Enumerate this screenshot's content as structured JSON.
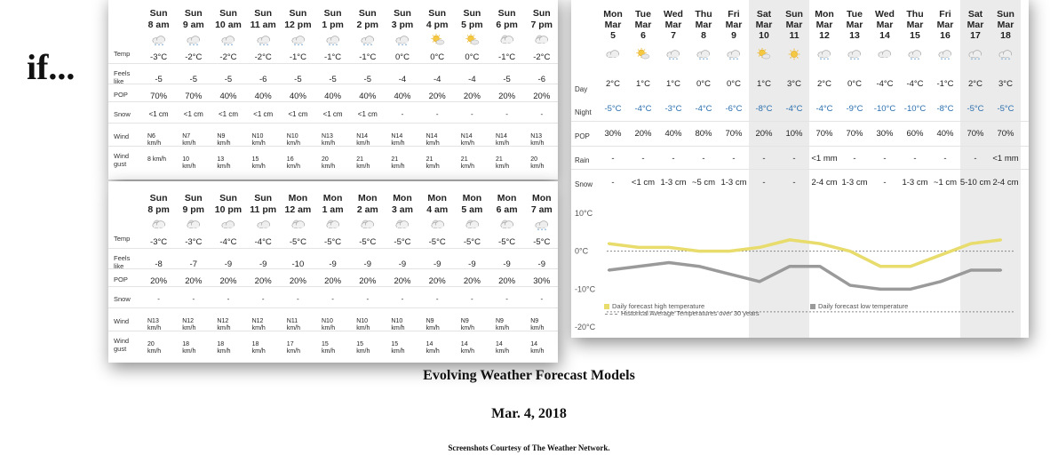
{
  "left_text": "if...",
  "caption": {
    "title": "Evolving Weather Forecast Models",
    "date": "Mar. 4, 2018",
    "credit": "Screenshots Courtesy of The Weather Network."
  },
  "hourly_top": {
    "labels": [
      "Temp",
      "Feels like",
      "POP",
      "Snow",
      "Wind",
      "Wind gust"
    ],
    "cols": [
      {
        "day": "Sun",
        "time": "8 am",
        "icon": "cloud-snow-icon",
        "temp": "-3°C",
        "feels": "-5",
        "pop": "70%",
        "snow": "<1 cm",
        "wind": "N6 km/h",
        "gust": "8 km/h"
      },
      {
        "day": "Sun",
        "time": "9 am",
        "icon": "cloud-snow-icon",
        "temp": "-2°C",
        "feels": "-5",
        "pop": "70%",
        "snow": "<1 cm",
        "wind": "N7 km/h",
        "gust": "10 km/h"
      },
      {
        "day": "Sun",
        "time": "10 am",
        "icon": "cloud-snow-icon",
        "temp": "-2°C",
        "feels": "-5",
        "pop": "40%",
        "snow": "<1 cm",
        "wind": "N9 km/h",
        "gust": "13 km/h"
      },
      {
        "day": "Sun",
        "time": "11 am",
        "icon": "cloud-snow-icon",
        "temp": "-2°C",
        "feels": "-6",
        "pop": "40%",
        "snow": "<1 cm",
        "wind": "N10 km/h",
        "gust": "15 km/h"
      },
      {
        "day": "Sun",
        "time": "12 pm",
        "icon": "cloud-snow-icon",
        "temp": "-1°C",
        "feels": "-5",
        "pop": "40%",
        "snow": "<1 cm",
        "wind": "N10 km/h",
        "gust": "16 km/h"
      },
      {
        "day": "Sun",
        "time": "1 pm",
        "icon": "cloud-snow-icon",
        "temp": "-1°C",
        "feels": "-5",
        "pop": "40%",
        "snow": "<1 cm",
        "wind": "N13 km/h",
        "gust": "20 km/h"
      },
      {
        "day": "Sun",
        "time": "2 pm",
        "icon": "cloud-snow-icon",
        "temp": "-1°C",
        "feels": "-5",
        "pop": "40%",
        "snow": "<1 cm",
        "wind": "N14 km/h",
        "gust": "21 km/h"
      },
      {
        "day": "Sun",
        "time": "3 pm",
        "icon": "cloud-snow-icon",
        "temp": "0°C",
        "feels": "-4",
        "pop": "40%",
        "snow": "-",
        "wind": "N14 km/h",
        "gust": "21 km/h"
      },
      {
        "day": "Sun",
        "time": "4 pm",
        "icon": "sun-cloud-icon",
        "temp": "0°C",
        "feels": "-4",
        "pop": "20%",
        "snow": "-",
        "wind": "N14 km/h",
        "gust": "21 km/h"
      },
      {
        "day": "Sun",
        "time": "5 pm",
        "icon": "sun-cloud-icon",
        "temp": "0°C",
        "feels": "-4",
        "pop": "20%",
        "snow": "-",
        "wind": "N14 km/h",
        "gust": "21 km/h"
      },
      {
        "day": "Sun",
        "time": "6 pm",
        "icon": "moon-cloud-icon",
        "temp": "-1°C",
        "feels": "-5",
        "pop": "20%",
        "snow": "-",
        "wind": "N14 km/h",
        "gust": "21 km/h"
      },
      {
        "day": "Sun",
        "time": "7 pm",
        "icon": "moon-cloud-icon",
        "temp": "-2°C",
        "feels": "-6",
        "pop": "20%",
        "snow": "-",
        "wind": "N13 km/h",
        "gust": "20 km/h"
      }
    ]
  },
  "hourly_bottom": {
    "labels": [
      "Temp",
      "Feels like",
      "POP",
      "Snow",
      "Wind",
      "Wind gust"
    ],
    "cols": [
      {
        "day": "Sun",
        "time": "8 pm",
        "icon": "moon-cloud-icon",
        "temp": "-3°C",
        "feels": "-8",
        "pop": "20%",
        "snow": "-",
        "wind": "N13 km/h",
        "gust": "20 km/h"
      },
      {
        "day": "Sun",
        "time": "9 pm",
        "icon": "moon-cloud-icon",
        "temp": "-3°C",
        "feels": "-7",
        "pop": "20%",
        "snow": "-",
        "wind": "N12 km/h",
        "gust": "18 km/h"
      },
      {
        "day": "Sun",
        "time": "10 pm",
        "icon": "cloud-icon",
        "temp": "-4°C",
        "feels": "-9",
        "pop": "20%",
        "snow": "-",
        "wind": "N12 km/h",
        "gust": "18 km/h"
      },
      {
        "day": "Sun",
        "time": "11 pm",
        "icon": "cloud-icon",
        "temp": "-4°C",
        "feels": "-9",
        "pop": "20%",
        "snow": "-",
        "wind": "N12 km/h",
        "gust": "18 km/h"
      },
      {
        "day": "Mon",
        "time": "12 am",
        "icon": "moon-cloud-icon",
        "temp": "-5°C",
        "feels": "-10",
        "pop": "20%",
        "snow": "-",
        "wind": "N11 km/h",
        "gust": "17 km/h"
      },
      {
        "day": "Mon",
        "time": "1 am",
        "icon": "moon-cloud-icon",
        "temp": "-5°C",
        "feels": "-9",
        "pop": "20%",
        "snow": "-",
        "wind": "N10 km/h",
        "gust": "15 km/h"
      },
      {
        "day": "Mon",
        "time": "2 am",
        "icon": "moon-cloud-icon",
        "temp": "-5°C",
        "feels": "-9",
        "pop": "20%",
        "snow": "-",
        "wind": "N10 km/h",
        "gust": "15 km/h"
      },
      {
        "day": "Mon",
        "time": "3 am",
        "icon": "moon-cloud-icon",
        "temp": "-5°C",
        "feels": "-9",
        "pop": "20%",
        "snow": "-",
        "wind": "N10 km/h",
        "gust": "15 km/h"
      },
      {
        "day": "Mon",
        "time": "4 am",
        "icon": "moon-cloud-icon",
        "temp": "-5°C",
        "feels": "-9",
        "pop": "20%",
        "snow": "-",
        "wind": "N9 km/h",
        "gust": "14 km/h"
      },
      {
        "day": "Mon",
        "time": "5 am",
        "icon": "moon-cloud-icon",
        "temp": "-5°C",
        "feels": "-9",
        "pop": "20%",
        "snow": "-",
        "wind": "N9 km/h",
        "gust": "14 km/h"
      },
      {
        "day": "Mon",
        "time": "6 am",
        "icon": "moon-cloud-icon",
        "temp": "-5°C",
        "feels": "-9",
        "pop": "20%",
        "snow": "-",
        "wind": "N9 km/h",
        "gust": "14 km/h"
      },
      {
        "day": "Mon",
        "time": "7 am",
        "icon": "cloud-snow-icon",
        "temp": "-5°C",
        "feels": "-9",
        "pop": "30%",
        "snow": "-",
        "wind": "N9 km/h",
        "gust": "14 km/h"
      }
    ]
  },
  "daily": {
    "labels": [
      "Day",
      "Night",
      "POP",
      "Rain",
      "Snow"
    ],
    "cols": [
      {
        "wd": "Mon",
        "mo": "Mar",
        "d": "5",
        "icon": "cloud-icon",
        "day": "2°C",
        "night": "-5°C",
        "pop": "30%",
        "rain": "-",
        "snow": "-",
        "weekend": false
      },
      {
        "wd": "Tue",
        "mo": "Mar",
        "d": "6",
        "icon": "sun-cloud-icon",
        "day": "1°C",
        "night": "-4°C",
        "pop": "20%",
        "rain": "-",
        "snow": "<1 cm",
        "weekend": false
      },
      {
        "wd": "Wed",
        "mo": "Mar",
        "d": "7",
        "icon": "cloud-snow-icon",
        "day": "1°C",
        "night": "-3°C",
        "pop": "40%",
        "rain": "-",
        "snow": "1-3 cm",
        "weekend": false
      },
      {
        "wd": "Thu",
        "mo": "Mar",
        "d": "8",
        "icon": "cloud-snow-icon",
        "day": "0°C",
        "night": "-4°C",
        "pop": "80%",
        "rain": "-",
        "snow": "~5 cm",
        "weekend": false
      },
      {
        "wd": "Fri",
        "mo": "Mar",
        "d": "9",
        "icon": "cloud-snow-icon",
        "day": "0°C",
        "night": "-6°C",
        "pop": "70%",
        "rain": "-",
        "snow": "1-3 cm",
        "weekend": false
      },
      {
        "wd": "Sat",
        "mo": "Mar",
        "d": "10",
        "icon": "sun-cloud-icon",
        "day": "1°C",
        "night": "-8°C",
        "pop": "20%",
        "rain": "-",
        "snow": "-",
        "weekend": true
      },
      {
        "wd": "Sun",
        "mo": "Mar",
        "d": "11",
        "icon": "sun-icon",
        "day": "3°C",
        "night": "-4°C",
        "pop": "10%",
        "rain": "-",
        "snow": "-",
        "weekend": true
      },
      {
        "wd": "Mon",
        "mo": "Mar",
        "d": "12",
        "icon": "cloud-snow-icon",
        "day": "2°C",
        "night": "-4°C",
        "pop": "70%",
        "rain": "<1 mm",
        "snow": "2-4 cm",
        "weekend": false
      },
      {
        "wd": "Tue",
        "mo": "Mar",
        "d": "13",
        "icon": "cloud-snow-icon",
        "day": "0°C",
        "night": "-9°C",
        "pop": "70%",
        "rain": "-",
        "snow": "1-3 cm",
        "weekend": false
      },
      {
        "wd": "Wed",
        "mo": "Mar",
        "d": "14",
        "icon": "cloud-icon",
        "day": "-4°C",
        "night": "-10°C",
        "pop": "30%",
        "rain": "-",
        "snow": "-",
        "weekend": false
      },
      {
        "wd": "Thu",
        "mo": "Mar",
        "d": "15",
        "icon": "cloud-snow-icon",
        "day": "-4°C",
        "night": "-10°C",
        "pop": "60%",
        "rain": "-",
        "snow": "1-3 cm",
        "weekend": false
      },
      {
        "wd": "Fri",
        "mo": "Mar",
        "d": "16",
        "icon": "cloud-snow-icon",
        "day": "-1°C",
        "night": "-8°C",
        "pop": "40%",
        "rain": "-",
        "snow": "~1 cm",
        "weekend": false
      },
      {
        "wd": "Sat",
        "mo": "Mar",
        "d": "17",
        "icon": "cloud-snow-icon",
        "day": "2°C",
        "night": "-5°C",
        "pop": "70%",
        "rain": "-",
        "snow": "5-10 cm",
        "weekend": true
      },
      {
        "wd": "Sun",
        "mo": "Mar",
        "d": "18",
        "icon": "cloud-snow-icon",
        "day": "3°C",
        "night": "-5°C",
        "pop": "70%",
        "rain": "<1 mm",
        "snow": "2-4 cm",
        "weekend": true
      }
    ]
  },
  "chart_data": {
    "type": "line",
    "x": [
      "Mar 5",
      "Mar 6",
      "Mar 7",
      "Mar 8",
      "Mar 9",
      "Mar 10",
      "Mar 11",
      "Mar 12",
      "Mar 13",
      "Mar 14",
      "Mar 15",
      "Mar 16",
      "Mar 17",
      "Mar 18"
    ],
    "series": [
      {
        "name": "Daily forecast high temperature",
        "values": [
          2,
          1,
          1,
          0,
          0,
          1,
          3,
          2,
          0,
          -4,
          -4,
          -1,
          2,
          3
        ],
        "color": "#e8dc6c"
      },
      {
        "name": "Daily forecast low temperature",
        "values": [
          -5,
          -4,
          -3,
          -4,
          -6,
          -8,
          -4,
          -4,
          -9,
          -10,
          -10,
          -8,
          -5,
          -5
        ],
        "color": "#9a9a9a"
      }
    ],
    "historical_label": "Historical Average Temperatures over 30 years",
    "historical_value": 0,
    "yticks": [
      "10°C",
      "0°C",
      "-10°C",
      "-20°C"
    ],
    "ylim": [
      -20,
      10
    ],
    "legend": "bottom"
  },
  "colors": {
    "night_blue": "#2a6fae",
    "high_line": "#e8dc6c",
    "low_line": "#9a9a9a",
    "weekend_band": "#ebebeb"
  }
}
